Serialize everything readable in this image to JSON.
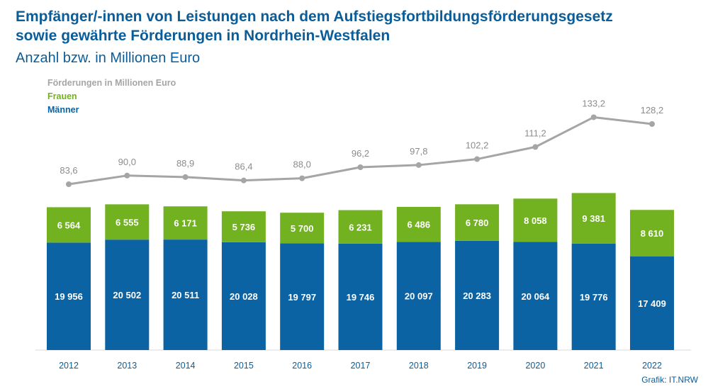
{
  "title_line1": "Empfänger/-innen von Leistungen nach dem Aufstiegsfortbildungsförderungsgesetz",
  "title_line2": "sowie gewährte Förderungen in Nordrhein-Westfalen",
  "subtitle": "Anzahl bzw. in Millionen Euro",
  "credit": "Grafik: IT.NRW",
  "colors": {
    "men": "#0b63a3",
    "women": "#72b221",
    "line": "#a5a5a5",
    "title": "#0a5d98"
  },
  "chart_data": {
    "type": "bar",
    "categories": [
      "2012",
      "2013",
      "2014",
      "2015",
      "2016",
      "2017",
      "2018",
      "2019",
      "2020",
      "2021",
      "2022"
    ],
    "series": [
      {
        "name": "Männer",
        "values": [
          19956,
          20502,
          20511,
          20028,
          19797,
          19746,
          20097,
          20283,
          20064,
          19776,
          17409
        ],
        "labels": [
          "19 956",
          "20 502",
          "20 511",
          "20 028",
          "19 797",
          "19 746",
          "20 097",
          "20 283",
          "20 064",
          "19 776",
          "17 409"
        ]
      },
      {
        "name": "Frauen",
        "values": [
          6564,
          6555,
          6171,
          5736,
          5700,
          6231,
          6486,
          6780,
          8058,
          9381,
          8610
        ],
        "labels": [
          "6 564",
          "6 555",
          "6 171",
          "5 736",
          "5 700",
          "6 231",
          "6 486",
          "6 780",
          "8 058",
          "9 381",
          "8 610"
        ]
      }
    ],
    "line_series": {
      "name": "Förderungen in Millionen Euro",
      "values": [
        83.6,
        90.0,
        88.9,
        86.4,
        88.0,
        96.2,
        97.8,
        102.2,
        111.2,
        133.2,
        128.2
      ],
      "labels": [
        "83,6",
        "90,0",
        "88,9",
        "86,4",
        "88,0",
        "96,2",
        "97,8",
        "102,2",
        "111,2",
        "133,2",
        "128,2"
      ]
    },
    "stacked": true,
    "legend": [
      "Förderungen in Millionen Euro",
      "Frauen",
      "Männer"
    ]
  }
}
